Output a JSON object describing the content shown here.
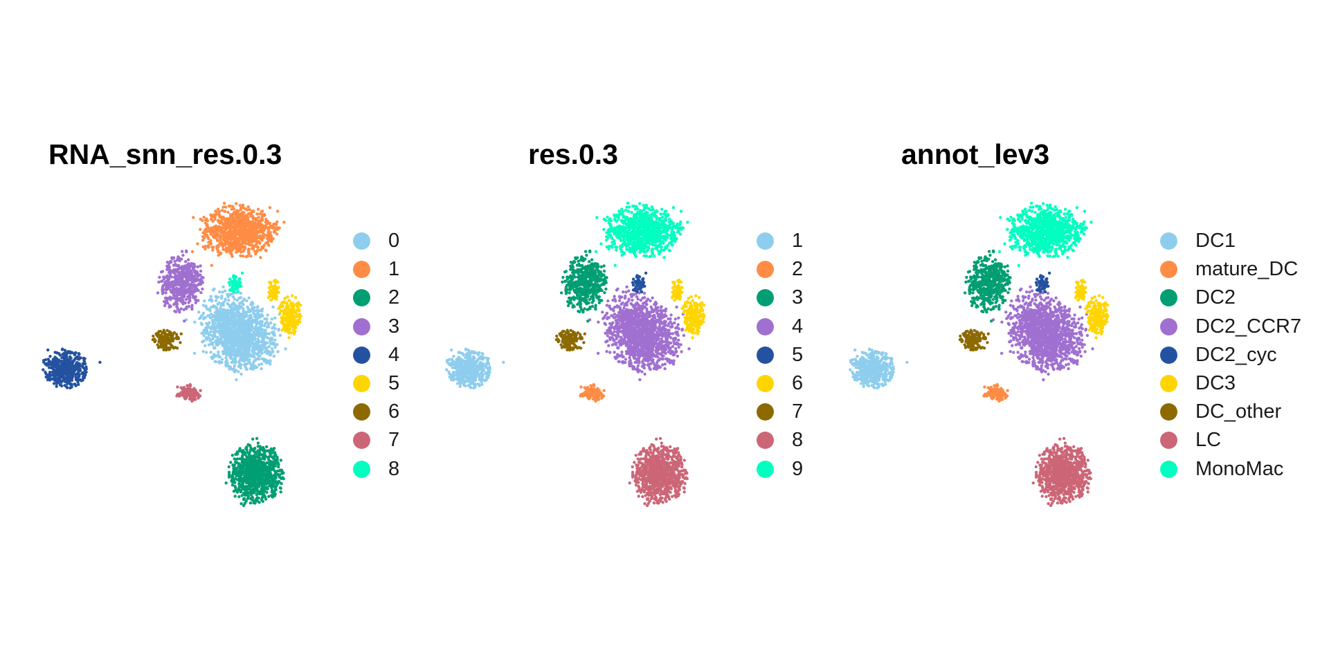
{
  "colors": {
    "light_blue": "#8ECDED",
    "orange": "#FF8C45",
    "green": "#009E73",
    "purple": "#A070D0",
    "dark_blue": "#2452A0",
    "yellow": "#FFD500",
    "olive": "#8C6A00",
    "rose": "#CC6677",
    "aqua": "#00FFC0"
  },
  "chart_data": [
    {
      "type": "scatter",
      "title": "RNA_snn_res.0.3",
      "legend": [
        "0",
        "1",
        "2",
        "3",
        "4",
        "5",
        "6",
        "7",
        "8"
      ],
      "legend_colors": [
        "#8ECDED",
        "#FF8C45",
        "#009E73",
        "#A070D0",
        "#2452A0",
        "#FFD500",
        "#8C6A00",
        "#CC6677",
        "#00FFC0"
      ],
      "legend_position": "right",
      "grid": false,
      "axes": "hidden"
    },
    {
      "type": "scatter",
      "title": "res.0.3",
      "legend": [
        "1",
        "2",
        "3",
        "4",
        "5",
        "6",
        "7",
        "8",
        "9"
      ],
      "legend_colors": [
        "#8ECDED",
        "#FF8C45",
        "#009E73",
        "#A070D0",
        "#2452A0",
        "#FFD500",
        "#8C6A00",
        "#CC6677",
        "#00FFC0"
      ],
      "legend_position": "right",
      "grid": false,
      "axes": "hidden"
    },
    {
      "type": "scatter",
      "title": "annot_lev3",
      "legend": [
        "DC1",
        "mature_DC",
        "DC2",
        "DC2_CCR7",
        "DC2_cyc",
        "DC3",
        "DC_other",
        "LC",
        "MonoMac"
      ],
      "legend_colors": [
        "#8ECDED",
        "#FF8C45",
        "#009E73",
        "#A070D0",
        "#2452A0",
        "#FFD500",
        "#8C6A00",
        "#CC6677",
        "#00FFC0"
      ],
      "legend_position": "right",
      "grid": false,
      "axes": "hidden"
    }
  ]
}
